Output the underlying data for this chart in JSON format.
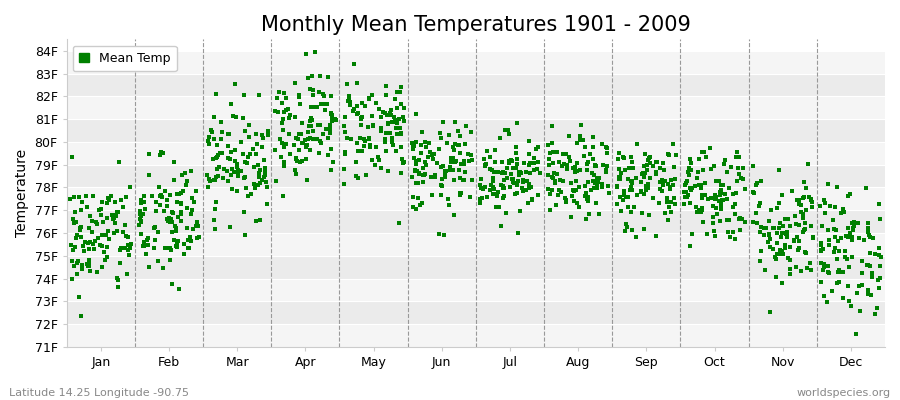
{
  "title": "Monthly Mean Temperatures 1901 - 2009",
  "ylabel": "Temperature",
  "xlabel": "",
  "ylim": [
    71,
    84.5
  ],
  "ytick_labels": [
    "71F",
    "72F",
    "73F",
    "74F",
    "75F",
    "76F",
    "77F",
    "78F",
    "79F",
    "80F",
    "81F",
    "82F",
    "83F",
    "84F"
  ],
  "ytick_values": [
    71,
    72,
    73,
    74,
    75,
    76,
    77,
    78,
    79,
    80,
    81,
    82,
    83,
    84
  ],
  "months": [
    "Jan",
    "Feb",
    "Mar",
    "Apr",
    "May",
    "Jun",
    "Jul",
    "Aug",
    "Sep",
    "Oct",
    "Nov",
    "Dec"
  ],
  "n_years": 109,
  "month_means": [
    75.8,
    76.5,
    79.2,
    80.8,
    80.6,
    78.8,
    78.6,
    78.4,
    78.1,
    77.8,
    76.2,
    75.2
  ],
  "month_stds": [
    1.3,
    1.4,
    1.2,
    1.2,
    1.2,
    1.0,
    0.9,
    0.9,
    1.0,
    1.1,
    1.3,
    1.4
  ],
  "dot_color": "#008000",
  "dot_size": 5,
  "dot_marker": "s",
  "legend_label": "Mean Temp",
  "bg_color": "#ffffff",
  "bg_band_colors": [
    "#f5f5f5",
    "#ebebeb"
  ],
  "vline_color": "#999999",
  "hline_color": "#ffffff",
  "title_fontsize": 15,
  "axis_fontsize": 10,
  "tick_fontsize": 9,
  "footnote_left": "Latitude 14.25 Longitude -90.75",
  "footnote_right": "worldspecies.org",
  "footnote_fontsize": 8
}
